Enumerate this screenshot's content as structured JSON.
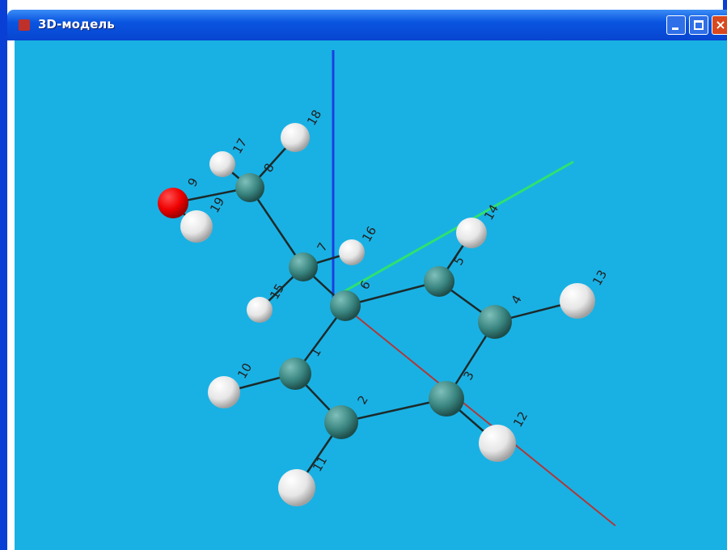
{
  "window": {
    "title": "3D-модель"
  },
  "atoms": [
    {
      "label": "1"
    },
    {
      "label": "2"
    },
    {
      "label": "3"
    },
    {
      "label": "4"
    },
    {
      "label": "5"
    },
    {
      "label": "6"
    },
    {
      "label": "7"
    },
    {
      "label": "8"
    },
    {
      "label": "9"
    },
    {
      "label": "10"
    },
    {
      "label": "11"
    },
    {
      "label": "12"
    },
    {
      "label": "13"
    },
    {
      "label": "14"
    },
    {
      "label": "15"
    },
    {
      "label": "16"
    },
    {
      "label": "17"
    },
    {
      "label": "18"
    },
    {
      "label": "19"
    }
  ]
}
